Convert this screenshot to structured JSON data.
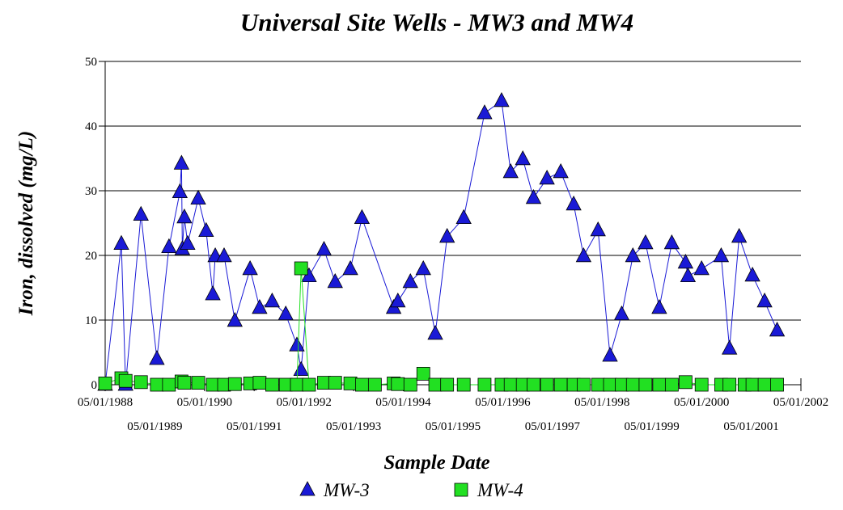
{
  "chart_data": {
    "type": "line",
    "title": "Universal Site Wells - MW3 and MW4",
    "x_label": "Sample Date",
    "y_label": "Iron, dissolved (mg/L)",
    "xlim": [
      "05/01/1988",
      "05/01/2002"
    ],
    "xticks": [
      "05/01/1988",
      "05/01/1989",
      "05/01/1990",
      "05/01/1991",
      "05/01/1992",
      "05/01/1993",
      "05/01/1994",
      "05/01/1995",
      "05/01/1996",
      "05/01/1997",
      "05/01/1998",
      "05/01/1999",
      "05/01/2000",
      "05/01/2001",
      "05/01/2002"
    ],
    "ylim": [
      0,
      50
    ],
    "yticks": [
      0,
      10,
      20,
      30,
      40,
      50
    ],
    "grid": true,
    "legend": "bottom",
    "series": [
      {
        "name": "MW-3",
        "color": "#1a1ad6",
        "marker": "triangle",
        "x": [
          "05/01/1988",
          "08/28/1988",
          "09/28/1988",
          "01/19/1989",
          "05/16/1989",
          "08/13/1989",
          "11/01/1989",
          "11/13/1989",
          "11/19/1989",
          "12/04/1989",
          "12/28/1989",
          "03/16/1990",
          "05/13/1990",
          "07/01/1990",
          "07/19/1990",
          "09/22/1990",
          "12/10/1990",
          "04/01/1991",
          "06/10/1991",
          "09/10/1991",
          "12/19/1991",
          "03/10/1992",
          "04/10/1992",
          "06/07/1992",
          "09/25/1992",
          "12/16/1992",
          "04/07/1993",
          "07/01/1993",
          "02/19/1994",
          "03/22/1994",
          "06/22/1994",
          "09/25/1994",
          "12/22/1994",
          "03/19/1995",
          "07/19/1995",
          "12/19/1995",
          "04/22/1996",
          "06/28/1996",
          "09/25/1996",
          "12/13/1996",
          "03/22/1997",
          "07/01/1997",
          "10/04/1997",
          "12/16/1997",
          "04/01/1998",
          "06/28/1998",
          "09/22/1998",
          "12/13/1998",
          "03/16/1999",
          "06/25/1999",
          "09/25/1999",
          "01/04/2000",
          "01/22/2000",
          "05/01/2000",
          "09/22/2000",
          "11/22/2000",
          "02/01/2001",
          "05/10/2001",
          "08/07/2001",
          "11/07/2001"
        ],
        "values": [
          0,
          21.8,
          0,
          26.3,
          4,
          21.3,
          29.8,
          34.2,
          21,
          25.9,
          21.8,
          28.8,
          23.8,
          14,
          19.9,
          19.9,
          9.9,
          17.9,
          11.9,
          12.9,
          10.9,
          6.1,
          2.3,
          16.8,
          20.9,
          15.9,
          17.9,
          25.8,
          11.9,
          12.9,
          15.9,
          17.9,
          7.9,
          22.9,
          25.8,
          42,
          43.9,
          32.9,
          34.9,
          28.9,
          31.9,
          32.9,
          27.9,
          19.9,
          23.9,
          4.5,
          10.9,
          19.9,
          21.9,
          11.9,
          21.9,
          18.9,
          16.8,
          17.9,
          19.9,
          5.6,
          22.9,
          16.9,
          12.9,
          8.4
        ]
      },
      {
        "name": "MW-4",
        "color": "#22e022",
        "marker": "square",
        "x": [
          "05/01/1988",
          "08/28/1988",
          "09/28/1988",
          "01/19/1989",
          "05/16/1989",
          "08/13/1989",
          "11/13/1989",
          "12/04/1989",
          "03/16/1990",
          "07/01/1990",
          "09/22/1990",
          "12/10/1990",
          "04/01/1991",
          "06/10/1991",
          "09/10/1991",
          "12/19/1991",
          "03/10/1992",
          "04/10/1992",
          "06/07/1992",
          "09/25/1992",
          "12/16/1992",
          "04/07/1993",
          "07/01/1993",
          "10/04/1993",
          "02/19/1994",
          "03/22/1994",
          "06/22/1994",
          "09/25/1994",
          "12/22/1994",
          "03/19/1995",
          "07/19/1995",
          "12/19/1995",
          "04/22/1996",
          "06/28/1996",
          "09/25/1996",
          "12/13/1996",
          "03/22/1997",
          "07/01/1997",
          "10/04/1997",
          "12/16/1997",
          "04/01/1998",
          "06/28/1998",
          "09/22/1998",
          "12/13/1998",
          "03/16/1999",
          "06/25/1999",
          "09/25/1999",
          "01/04/2000",
          "05/01/2000",
          "09/22/2000",
          "11/22/2000",
          "03/13/2001",
          "05/10/2001",
          "08/07/2001",
          "11/07/2001"
        ],
        "values": [
          0.2,
          1,
          0.6,
          0.4,
          0,
          0,
          0.5,
          0.3,
          0.3,
          0,
          0,
          0.1,
          0.2,
          0.3,
          0,
          0,
          0,
          18,
          0,
          0.3,
          0.3,
          0.2,
          0,
          0,
          0.2,
          0.1,
          0,
          1.7,
          0,
          0,
          0,
          0,
          0,
          0,
          0,
          0,
          0,
          0,
          0,
          0,
          0,
          0,
          0,
          0,
          0,
          0,
          0,
          0.4,
          0,
          0,
          0,
          0,
          0,
          0,
          0
        ]
      }
    ]
  }
}
